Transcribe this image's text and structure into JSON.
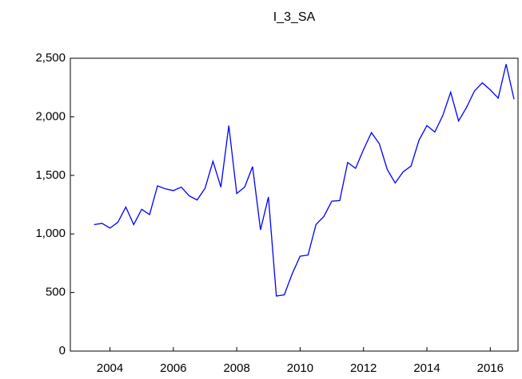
{
  "chart_data": {
    "type": "line",
    "title": "I_3_SA",
    "x": [
      2003.5,
      2003.75,
      2004,
      2004.25,
      2004.5,
      2004.75,
      2005,
      2005.25,
      2005.5,
      2005.75,
      2006,
      2006.25,
      2006.5,
      2006.75,
      2007,
      2007.25,
      2007.5,
      2007.75,
      2008,
      2008.25,
      2008.5,
      2008.75,
      2009,
      2009.25,
      2009.5,
      2009.75,
      2010,
      2010.25,
      2010.5,
      2010.75,
      2011,
      2011.25,
      2011.5,
      2011.75,
      2012,
      2012.25,
      2012.5,
      2012.75,
      2013,
      2013.25,
      2013.5,
      2013.75,
      2014,
      2014.25,
      2014.5,
      2014.75,
      2015,
      2015.25,
      2015.5,
      2015.75,
      2016,
      2016.25,
      2016.5,
      2016.75
    ],
    "series": [
      {
        "name": "I_3_SA",
        "color": "#0000ff",
        "values": [
          1080,
          1090,
          1050,
          1100,
          1230,
          1080,
          1210,
          1165,
          1410,
          1385,
          1370,
          1400,
          1325,
          1290,
          1390,
          1620,
          1400,
          1925,
          1345,
          1400,
          1575,
          1035,
          1315,
          470,
          480,
          660,
          810,
          820,
          1080,
          1150,
          1280,
          1285,
          1610,
          1560,
          1720,
          1865,
          1770,
          1550,
          1435,
          1530,
          1580,
          1800,
          1925,
          1870,
          2010,
          2210,
          1965,
          2080,
          2220,
          2290,
          2230,
          2160,
          2450,
          2150
        ]
      }
    ],
    "xlim": [
      2002.75,
      2016.875
    ],
    "xticks": [
      2004,
      2006,
      2008,
      2010,
      2012,
      2014,
      2016
    ],
    "ylim": [
      0,
      2500
    ],
    "yticks": [
      0,
      500,
      {
        "value": 1000,
        "label": "1,000"
      },
      {
        "value": 1500,
        "label": "1,500"
      },
      {
        "value": 2000,
        "label": "2,000"
      },
      {
        "value": 2500,
        "label": "2,500"
      }
    ]
  }
}
